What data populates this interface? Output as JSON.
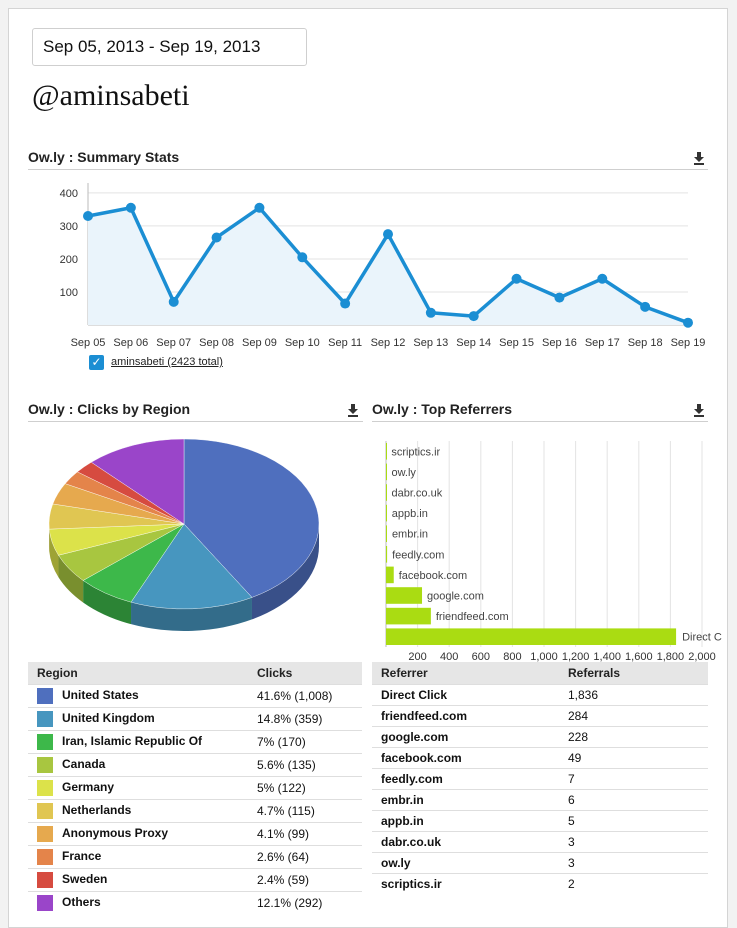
{
  "date_range": "Sep 05, 2013 - Sep 19, 2013",
  "handle": "@aminsabeti",
  "summary": {
    "title": "Ow.ly : Summary Stats",
    "legend_label": "aminsabeti (2423 total)",
    "color": "#1b8ed3"
  },
  "region_panel": {
    "title": "Ow.ly : Clicks by Region"
  },
  "referrer_panel": {
    "title": "Ow.ly : Top Referrers"
  },
  "region_table": {
    "headers": [
      "Region",
      "Clicks"
    ],
    "rows": [
      {
        "region": "United States",
        "clicks": "41.6% (1,008)",
        "color": "#4f6fbe"
      },
      {
        "region": "United Kingdom",
        "clicks": "14.8% (359)",
        "color": "#4796bf"
      },
      {
        "region": "Iran, Islamic Republic Of",
        "clicks": "7% (170)",
        "color": "#3db84a"
      },
      {
        "region": "Canada",
        "clicks": "5.6% (135)",
        "color": "#a8c640"
      },
      {
        "region": "Germany",
        "clicks": "5% (122)",
        "color": "#dce24a"
      },
      {
        "region": "Netherlands",
        "clicks": "4.7% (115)",
        "color": "#e0c652"
      },
      {
        "region": "Anonymous Proxy",
        "clicks": "4.1% (99)",
        "color": "#e6a94e"
      },
      {
        "region": "France",
        "clicks": "2.6% (64)",
        "color": "#e4844a"
      },
      {
        "region": "Sweden",
        "clicks": "2.4% (59)",
        "color": "#d64b40"
      },
      {
        "region": "Others",
        "clicks": "12.1% (292)",
        "color": "#9a45c9"
      }
    ]
  },
  "referrer_table": {
    "headers": [
      "Referrer",
      "Referrals"
    ],
    "rows": [
      {
        "referrer": "Direct Click",
        "referrals": "1,836"
      },
      {
        "referrer": "friendfeed.com",
        "referrals": "284"
      },
      {
        "referrer": "google.com",
        "referrals": "228"
      },
      {
        "referrer": "facebook.com",
        "referrals": "49"
      },
      {
        "referrer": "feedly.com",
        "referrals": "7"
      },
      {
        "referrer": "embr.in",
        "referrals": "6"
      },
      {
        "referrer": "appb.in",
        "referrals": "5"
      },
      {
        "referrer": "dabr.co.uk",
        "referrals": "3"
      },
      {
        "referrer": "ow.ly",
        "referrals": "3"
      },
      {
        "referrer": "scriptics.ir",
        "referrals": "2"
      }
    ]
  },
  "chart_data": [
    {
      "type": "area",
      "categories": [
        "Sep 05",
        "Sep 06",
        "Sep 07",
        "Sep 08",
        "Sep 09",
        "Sep 10",
        "Sep 11",
        "Sep 12",
        "Sep 13",
        "Sep 14",
        "Sep 15",
        "Sep 16",
        "Sep 17",
        "Sep 18",
        "Sep 19"
      ],
      "series": [
        {
          "name": "aminsabeti (2423 total)",
          "values": [
            330,
            355,
            70,
            265,
            355,
            205,
            65,
            275,
            37,
            27,
            140,
            83,
            140,
            55,
            7
          ]
        }
      ],
      "yticks": [
        100,
        200,
        300,
        400
      ],
      "ylim": [
        0,
        430
      ],
      "grid": true
    },
    {
      "type": "pie",
      "labels": [
        "United States",
        "United Kingdom",
        "Iran, Islamic Republic Of",
        "Canada",
        "Germany",
        "Netherlands",
        "Anonymous Proxy",
        "France",
        "Sweden",
        "Others"
      ],
      "values": [
        1008,
        359,
        170,
        135,
        122,
        115,
        99,
        64,
        59,
        292
      ]
    },
    {
      "type": "bar",
      "orientation": "horizontal",
      "categories": [
        "scriptics.ir",
        "ow.ly",
        "dabr.co.uk",
        "appb.in",
        "embr.in",
        "feedly.com",
        "facebook.com",
        "google.com",
        "friendfeed.com",
        "Direct Click"
      ],
      "values": [
        2,
        3,
        3,
        5,
        6,
        7,
        49,
        228,
        284,
        1836
      ],
      "bar_labels": [
        "scriptics.ir",
        "ow.ly",
        "dabr.co.uk",
        "appb.in",
        "embr.in",
        "feedly.com",
        "facebook.com",
        "google.com",
        "friendfeed.com",
        "Direct C"
      ],
      "xticks": [
        "200",
        "400",
        "600",
        "800",
        "1,000",
        "1,200",
        "1,400",
        "1,600",
        "1,800",
        "2,000"
      ],
      "xlim": [
        0,
        2000
      ],
      "color": "#aadc12",
      "grid": true
    }
  ]
}
